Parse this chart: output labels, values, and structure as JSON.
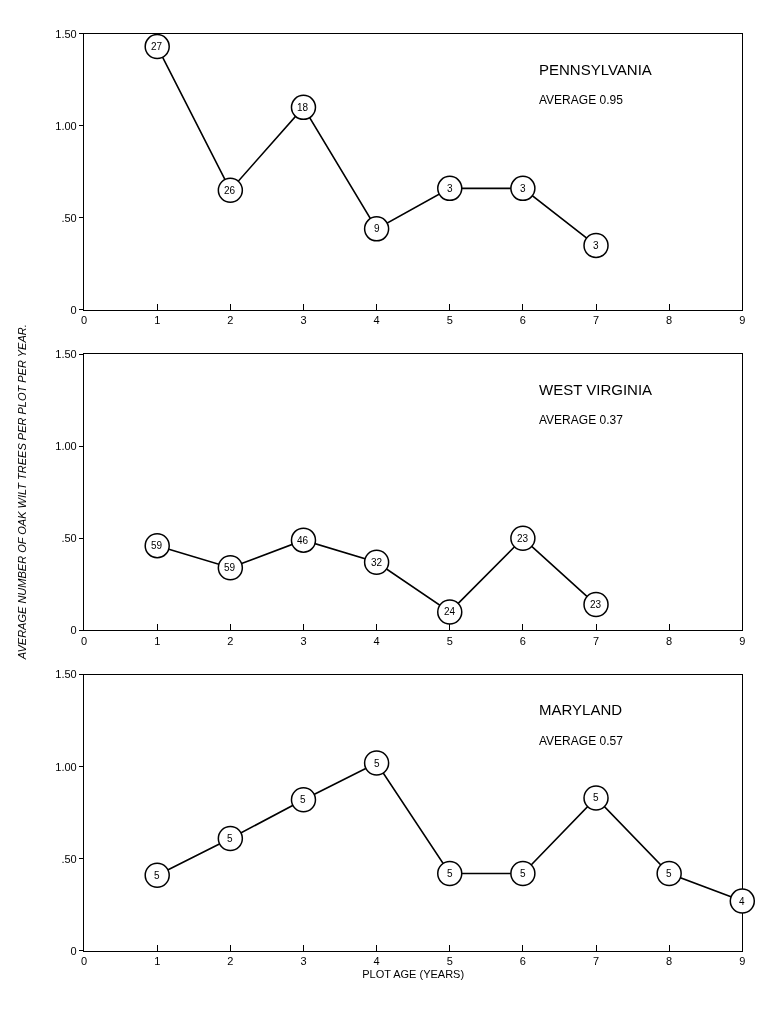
{
  "chart_data": [
    {
      "type": "line",
      "title": "PENNSYLVANIA",
      "subtitle": "AVERAGE 0.95",
      "x": [
        1,
        2,
        3,
        4,
        5,
        6,
        7
      ],
      "series": [
        {
          "color": "#000000",
          "values": [
            1.43,
            0.65,
            1.1,
            0.44,
            0.66,
            0.66,
            0.35
          ]
        }
      ],
      "annotations": [
        {
          "text": "27",
          "x": 1,
          "y": 1.43
        },
        {
          "text": "26",
          "x": 2,
          "y": 0.65
        },
        {
          "text": "18",
          "x": 3,
          "y": 1.1
        },
        {
          "text": "9",
          "x": 4,
          "y": 0.44
        },
        {
          "text": "3",
          "x": 5,
          "y": 0.66
        },
        {
          "text": "3",
          "x": 6,
          "y": 0.66
        },
        {
          "text": "3",
          "x": 7,
          "y": 0.35
        }
      ],
      "xlim": [
        0,
        9
      ],
      "xticks": [
        0,
        1,
        2,
        3,
        4,
        5,
        6,
        7,
        8,
        9
      ],
      "ylim": [
        0,
        1.5
      ],
      "yticks": [
        0,
        {
          "value": 0.5,
          "label": ".50"
        },
        {
          "value": 1.0,
          "label": "1.00"
        },
        {
          "value": 1.5,
          "label": "1.50"
        }
      ],
      "grid": false,
      "legend": false,
      "marker": "circle",
      "line_style": "solid"
    },
    {
      "type": "line",
      "title": "WEST VIRGINIA",
      "subtitle": "AVERAGE 0.37",
      "ylabel": "AVERAGE NUMBER OF OAK WILT TREES PER PLOT PER YEAR.",
      "x": [
        1,
        2,
        3,
        4,
        5,
        6,
        7
      ],
      "series": [
        {
          "color": "#000000",
          "values": [
            0.46,
            0.34,
            0.49,
            0.37,
            0.1,
            0.5,
            0.14
          ]
        }
      ],
      "annotations": [
        {
          "text": "59",
          "x": 1,
          "y": 0.46
        },
        {
          "text": "59",
          "x": 2,
          "y": 0.34
        },
        {
          "text": "46",
          "x": 3,
          "y": 0.49
        },
        {
          "text": "32",
          "x": 4,
          "y": 0.37
        },
        {
          "text": "24",
          "x": 5,
          "y": 0.1
        },
        {
          "text": "23",
          "x": 6,
          "y": 0.5
        },
        {
          "text": "23",
          "x": 7,
          "y": 0.14
        }
      ],
      "xlim": [
        0,
        9
      ],
      "xticks": [
        0,
        1,
        2,
        3,
        4,
        5,
        6,
        7,
        8,
        9
      ],
      "ylim": [
        0,
        1.5
      ],
      "yticks": [
        0,
        {
          "value": 0.5,
          "label": ".50"
        },
        {
          "value": 1.0,
          "label": "1.00"
        },
        {
          "value": 1.5,
          "label": "1.50"
        }
      ],
      "grid": false,
      "legend": false,
      "marker": "circle",
      "line_style": "solid"
    },
    {
      "type": "line",
      "title": "MARYLAND",
      "subtitle": "AVERAGE 0.57",
      "xlabel": "PLOT AGE (YEARS)",
      "x": [
        1,
        2,
        3,
        4,
        5,
        6,
        7,
        8,
        9
      ],
      "series": [
        {
          "color": "#000000",
          "values": [
            0.41,
            0.61,
            0.82,
            1.02,
            0.42,
            0.42,
            0.83,
            0.42,
            0.27
          ]
        }
      ],
      "annotations": [
        {
          "text": "5",
          "x": 1,
          "y": 0.41
        },
        {
          "text": "5",
          "x": 2,
          "y": 0.61
        },
        {
          "text": "5",
          "x": 3,
          "y": 0.82
        },
        {
          "text": "5",
          "x": 4,
          "y": 1.02
        },
        {
          "text": "5",
          "x": 5,
          "y": 0.42
        },
        {
          "text": "5",
          "x": 6,
          "y": 0.42
        },
        {
          "text": "5",
          "x": 7,
          "y": 0.83
        },
        {
          "text": "5",
          "x": 8,
          "y": 0.42
        },
        {
          "text": "4",
          "x": 9,
          "y": 0.27
        }
      ],
      "xlim": [
        0,
        9
      ],
      "xticks": [
        0,
        1,
        2,
        3,
        4,
        5,
        6,
        7,
        8,
        9
      ],
      "ylim": [
        0,
        1.5
      ],
      "yticks": [
        0,
        {
          "value": 0.5,
          "label": ".50"
        },
        {
          "value": 1.0,
          "label": "1.00"
        },
        {
          "value": 1.5,
          "label": "1.50"
        }
      ],
      "grid": false,
      "legend": false,
      "marker": "circle",
      "line_style": "solid"
    }
  ]
}
